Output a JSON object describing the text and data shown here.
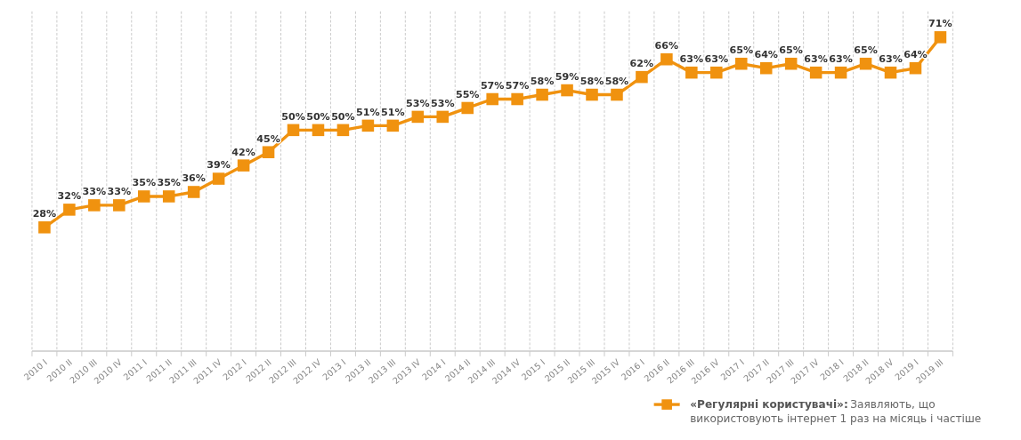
{
  "chart_data": {
    "type": "line",
    "categories": [
      "2010 I",
      "2010 II",
      "2010 III",
      "2010 IV",
      "2011 I",
      "2011 II",
      "2011 III",
      "2011 IV",
      "2012 I",
      "2012 II",
      "2012 III",
      "2012 IV",
      "2013 I",
      "2013 II",
      "2013 III",
      "2013 IV",
      "2014 I",
      "2014 II",
      "2014 III",
      "2014 IV",
      "2015 I",
      "2015 II",
      "2015 III",
      "2015 IV",
      "2016 I",
      "2016 II",
      "2016 III",
      "2016 IV",
      "2017 I",
      "2017 II",
      "2017 III",
      "2017 IV",
      "2018 I",
      "2018 II",
      "2018 IV",
      "2019 I",
      "2019 III"
    ],
    "series": [
      {
        "name": "«Регулярні користувачі»:",
        "color": "#f0920f",
        "values": [
          28,
          32,
          33,
          33,
          35,
          35,
          36,
          39,
          42,
          45,
          50,
          50,
          50,
          51,
          51,
          53,
          53,
          55,
          57,
          57,
          58,
          59,
          58,
          58,
          62,
          66,
          63,
          63,
          65,
          64,
          65,
          63,
          63,
          65,
          63,
          64,
          71
        ],
        "value_labels": [
          "28%",
          "32%",
          "33%",
          "33%",
          "35%",
          "35%",
          "36%",
          "39%",
          "42%",
          "45%",
          "50%",
          "50%",
          "50%",
          "51%",
          "51%",
          "53%",
          "53%",
          "55%",
          "57%",
          "57%",
          "58%",
          "59%",
          "58%",
          "58%",
          "62%",
          "66%",
          "63%",
          "63%",
          "65%",
          "64%",
          "65%",
          "63%",
          "63%",
          "65%",
          "63%",
          "64%",
          "71%"
        ]
      }
    ],
    "grid": "x",
    "marker": "square",
    "legend": "bottom right",
    "tick_labels": "x",
    "annotations": [
      "Заявляють, що використовують інтернет 1 раз на місяць і частіше"
    ]
  }
}
